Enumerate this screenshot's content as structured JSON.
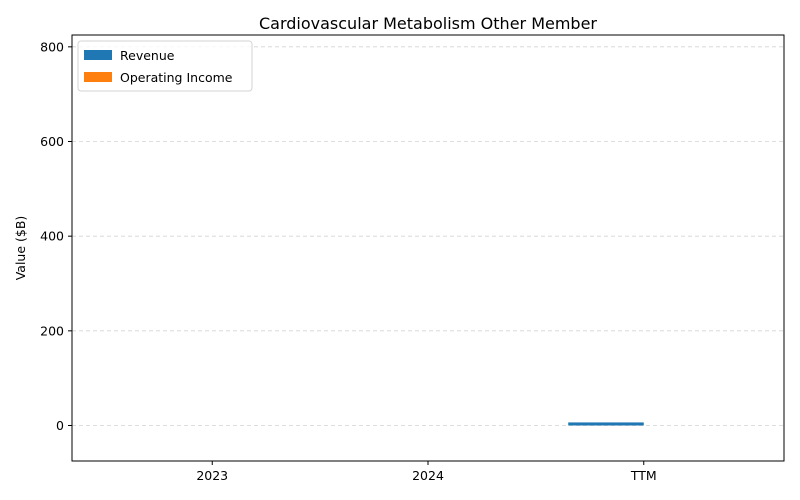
{
  "chart_data": {
    "type": "bar",
    "title": "Cardiovascular Metabolism Other Member",
    "xlabel": "",
    "ylabel": "Value ($B)",
    "categories": [
      "2023",
      "2024",
      "TTM"
    ],
    "series": [
      {
        "name": "Revenue",
        "color": "#1f77b4",
        "values": [
          0,
          0,
          6.5
        ]
      },
      {
        "name": "Operating Income",
        "color": "#ff7f0e",
        "values": [
          0,
          0,
          0
        ]
      }
    ],
    "ylim": [
      -75,
      825
    ],
    "yticks": [
      0,
      200,
      400,
      600,
      800
    ],
    "grid": true,
    "legend_position": "top-left"
  }
}
